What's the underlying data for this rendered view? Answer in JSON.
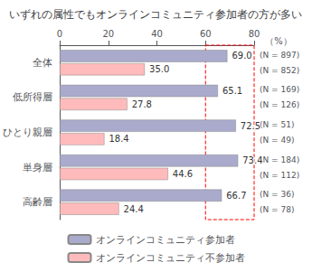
{
  "chart_data": {
    "type": "bar",
    "orientation": "horizontal",
    "title": "いずれの属性でもオンラインコミュニティ参加者の方が多い",
    "categories": [
      "全体",
      "低所得層",
      "ひとり親層",
      "単身層",
      "高齢層"
    ],
    "series": [
      {
        "name": "オンラインコミュニティ参加者",
        "color": "#aaaacc",
        "values": [
          69.0,
          65.1,
          72.5,
          73.4,
          66.7
        ],
        "value_labels": [
          "69.0",
          "65.1",
          "72.5",
          "73.4",
          "66.7"
        ],
        "n_labels": [
          "(N = 897)",
          "(N = 169)",
          "(N = 51)",
          "(N = 184)",
          "(N = 36)"
        ]
      },
      {
        "name": "オンラインコミュニティ不参加者",
        "color": "#ffbbbb",
        "values": [
          35.0,
          27.8,
          18.4,
          44.6,
          24.4
        ],
        "value_labels": [
          "35.0",
          "27.8",
          "18.4",
          "44.6",
          "24.4"
        ],
        "n_labels": [
          "(N = 852)",
          "(N = 126)",
          "(N = 49)",
          "(N = 112)",
          "(N = 78)"
        ]
      }
    ],
    "xlabel": "（%）",
    "xlim": [
      0,
      80
    ],
    "xticks": [
      0,
      20,
      40,
      60,
      80
    ],
    "highlight": {
      "x": [
        60,
        80
      ],
      "color": "red",
      "line_style": "dashed"
    },
    "grid": false,
    "legend": "bottom",
    "data_labels": true
  }
}
